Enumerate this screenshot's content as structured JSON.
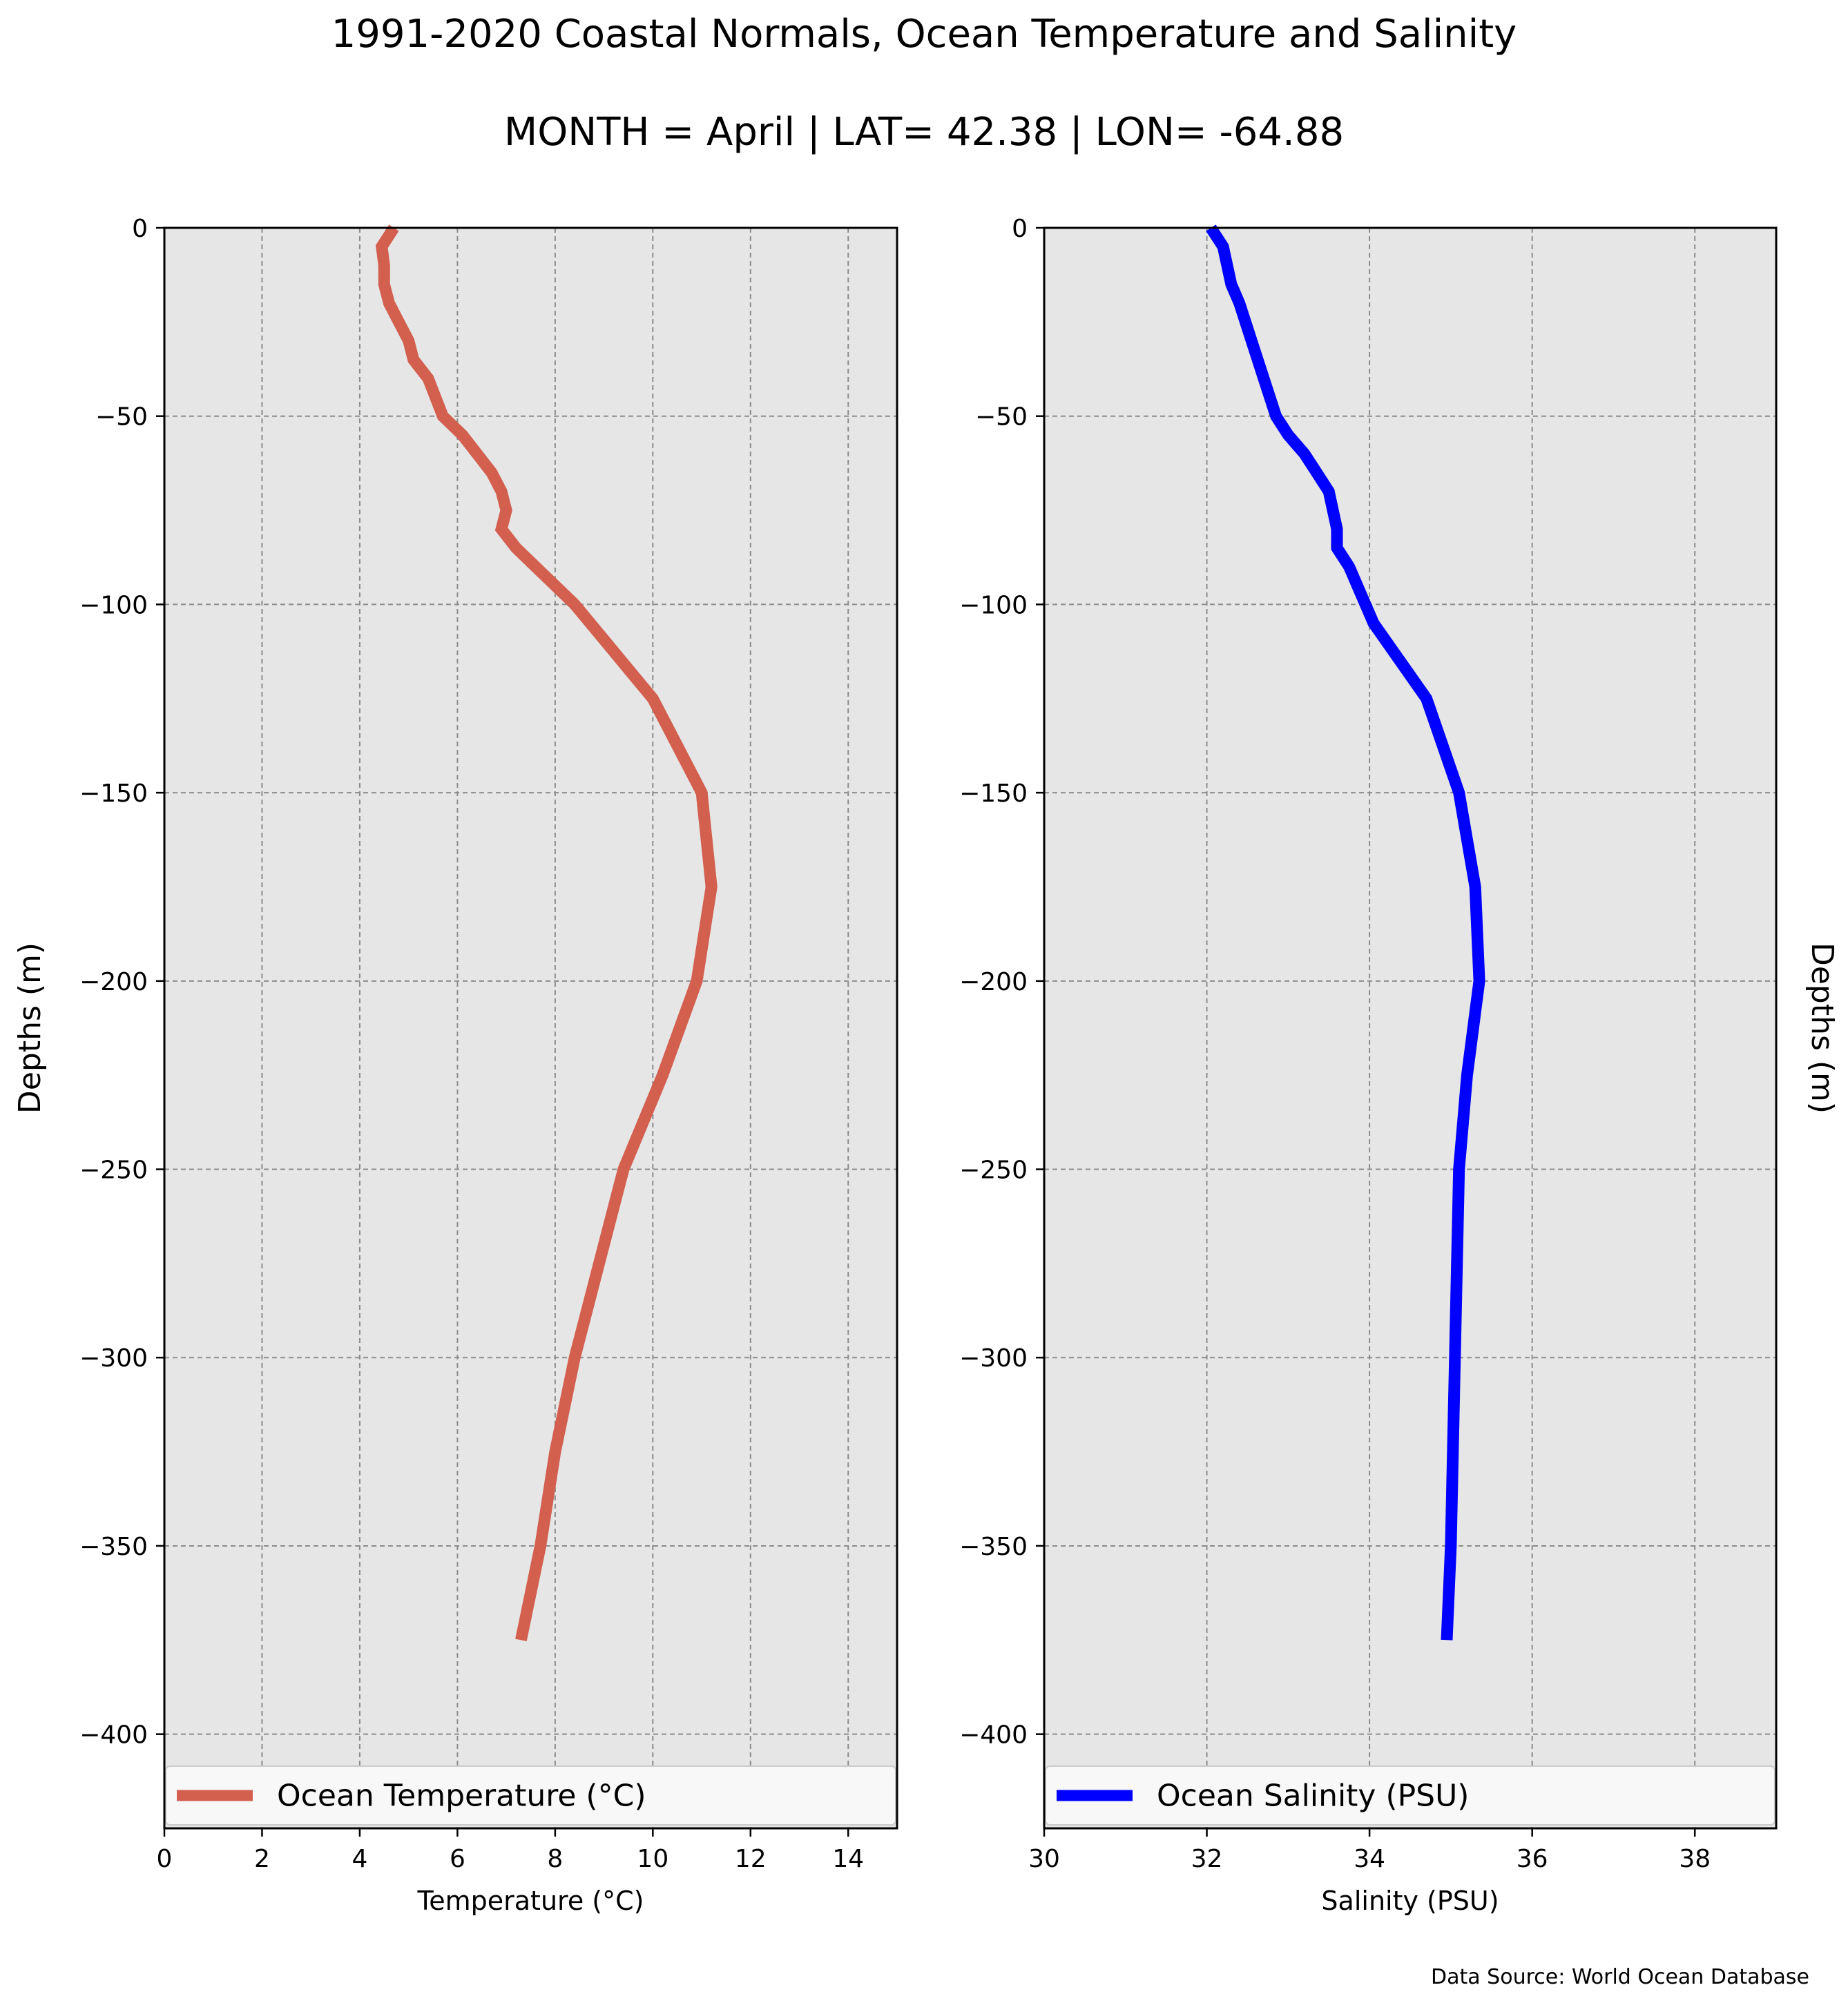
{
  "figure": {
    "title": "1991-2020 Coastal Normals, Ocean Temperature and Salinity",
    "subtitle": "MONTH = April | LAT= 42.38 | LON= -64.88",
    "source_note": "Data Source: World Ocean Database",
    "background": "#ffffff"
  },
  "chart_data": [
    {
      "type": "line",
      "title": "",
      "xlabel": "Temperature ($^\\circ$C)",
      "xlabel_display": "Temperature (°C)",
      "ylabel": "Depths (m)",
      "ylabel_side": "left",
      "xlim": [
        0,
        15
      ],
      "ylim": [
        -425,
        0
      ],
      "xticks": [
        0,
        2,
        4,
        6,
        8,
        10,
        12,
        14
      ],
      "xtick_labels": [
        "0",
        "2",
        "4",
        "6",
        "8",
        "10",
        "12",
        "14"
      ],
      "yticks": [
        0,
        -50,
        -100,
        -150,
        -200,
        -250,
        -300,
        -350,
        -400
      ],
      "ytick_labels": [
        "0",
        "−50",
        "−100",
        "−150",
        "−200",
        "−250",
        "−300",
        "−350",
        "−400"
      ],
      "grid": true,
      "legend_placement": "bottom",
      "plot_background": "#e6e6e6",
      "series": [
        {
          "name": "Ocean Temperature (°C)",
          "color": "#d35f4f",
          "x": [
            4.7,
            4.45,
            4.5,
            4.5,
            4.6,
            4.8,
            5.0,
            5.1,
            5.4,
            5.7,
            6.1,
            6.4,
            6.7,
            6.9,
            7.0,
            6.9,
            7.2,
            7.6,
            8.0,
            8.4,
            10.0,
            11.0,
            11.2,
            10.9,
            10.2,
            9.4,
            8.9,
            8.4,
            8.0,
            7.7,
            7.3
          ],
          "y": [
            0,
            -5,
            -10,
            -15,
            -20,
            -25,
            -30,
            -35,
            -40,
            -50,
            -55,
            -60,
            -65,
            -70,
            -75,
            -80,
            -85,
            -90,
            -95,
            -100,
            -125,
            -150,
            -175,
            -200,
            -225,
            -250,
            -275,
            -300,
            -325,
            -350,
            -375
          ]
        }
      ]
    },
    {
      "type": "line",
      "title": "",
      "xlabel": "Salinity (PSU)",
      "ylabel": "Depths (m)",
      "ylabel_side": "right",
      "xlim": [
        30,
        39
      ],
      "ylim": [
        -425,
        0
      ],
      "xticks": [
        30,
        32,
        34,
        36,
        38
      ],
      "xtick_labels": [
        "30",
        "32",
        "34",
        "36",
        "38"
      ],
      "yticks": [
        0,
        -50,
        -100,
        -150,
        -200,
        -250,
        -300,
        -350,
        -400
      ],
      "ytick_labels": [
        "0",
        "−50",
        "−100",
        "−150",
        "−200",
        "−250",
        "−300",
        "−350",
        "−400"
      ],
      "grid": true,
      "legend_placement": "bottom",
      "plot_background": "#e6e6e6",
      "series": [
        {
          "name": "Ocean Salinity (PSU)",
          "color": "#0000ff",
          "x": [
            32.05,
            32.2,
            32.25,
            32.3,
            32.4,
            32.55,
            32.7,
            32.85,
            33.0,
            33.2,
            33.35,
            33.5,
            33.55,
            33.6,
            33.6,
            33.75,
            33.85,
            33.95,
            34.05,
            34.7,
            35.1,
            35.3,
            35.35,
            35.2,
            35.1,
            35.05,
            35.0,
            34.95
          ],
          "y": [
            0,
            -5,
            -10,
            -15,
            -20,
            -30,
            -40,
            -50,
            -55,
            -60,
            -65,
            -70,
            -75,
            -80,
            -85,
            -90,
            -95,
            -100,
            -105,
            -125,
            -150,
            -175,
            -200,
            -225,
            -250,
            -300,
            -350,
            -375
          ]
        }
      ]
    }
  ]
}
